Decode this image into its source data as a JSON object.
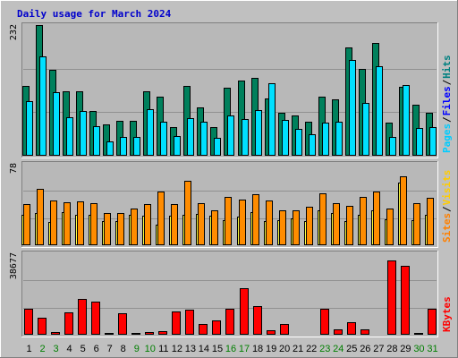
{
  "title": "Daily usage for March 2024",
  "colors": {
    "background": "#c0c0c0",
    "panel": "#b8b8b8",
    "hits": "#00805c",
    "files": "#00e0ff",
    "pages": "#0000c8",
    "visits": "#ff8c00",
    "sites": "#ffff40",
    "kbytes": "#ff0000",
    "title": "#0000cc",
    "weekday": "#000000",
    "weekend": "#007f00"
  },
  "chart_data": [
    {
      "type": "bar",
      "panel": "top",
      "ymax_label": "232",
      "ylim": [
        0,
        232
      ],
      "legend": [
        {
          "label": "Pages",
          "color": "#00ccff"
        },
        {
          "label": "/",
          "color": "#000000"
        },
        {
          "label": "Files",
          "color": "#0000ff"
        },
        {
          "label": "/",
          "color": "#000000"
        },
        {
          "label": "Hits",
          "color": "#008080"
        }
      ],
      "categories": [
        "1",
        "2",
        "3",
        "4",
        "5",
        "6",
        "7",
        "8",
        "9",
        "10",
        "11",
        "12",
        "13",
        "14",
        "15",
        "16",
        "17",
        "18",
        "19",
        "20",
        "21",
        "22",
        "23",
        "24",
        "25",
        "26",
        "27",
        "28",
        "29",
        "30",
        "31"
      ],
      "series": [
        {
          "key": "hits",
          "values": [
            124,
            232,
            153,
            114,
            114,
            79,
            56,
            62,
            62,
            114,
            105,
            51,
            124,
            86,
            51,
            121,
            133,
            139,
            101,
            77,
            71,
            60,
            105,
            100,
            193,
            154,
            200,
            59,
            123,
            91,
            77
          ]
        },
        {
          "key": "files",
          "values": [
            97,
            176,
            113,
            68,
            80,
            53,
            26,
            33,
            33,
            82,
            60,
            35,
            66,
            60,
            31,
            72,
            65,
            81,
            128,
            64,
            47,
            38,
            58,
            60,
            170,
            93,
            159,
            34,
            126,
            50,
            51
          ]
        },
        {
          "key": "pages",
          "values": [
            0,
            0,
            0,
            0,
            0,
            0,
            0,
            0,
            0,
            0,
            0,
            0,
            0,
            0,
            0,
            0,
            0,
            0,
            0,
            0,
            0,
            0,
            0,
            0,
            0,
            0,
            0,
            0,
            0,
            0,
            0
          ]
        }
      ]
    },
    {
      "type": "bar",
      "panel": "middle",
      "ymax_label": "78",
      "ylim": [
        0,
        78
      ],
      "legend": [
        {
          "label": "Sites",
          "color": "#ff8000"
        },
        {
          "label": "/",
          "color": "#000000"
        },
        {
          "label": "Visits",
          "color": "#ffcc00"
        }
      ],
      "categories": [
        "1",
        "2",
        "3",
        "4",
        "5",
        "6",
        "7",
        "8",
        "9",
        "10",
        "11",
        "12",
        "13",
        "14",
        "15",
        "16",
        "17",
        "18",
        "19",
        "20",
        "21",
        "22",
        "23",
        "24",
        "25",
        "26",
        "27",
        "28",
        "29",
        "30",
        "31"
      ],
      "series": [
        {
          "key": "sites",
          "values": [
            29,
            31,
            22,
            32,
            29,
            29,
            23,
            23,
            29,
            28,
            20,
            28,
            29,
            30,
            28,
            24,
            27,
            32,
            23,
            24,
            26,
            23,
            33,
            31,
            23,
            29,
            33,
            25,
            60,
            24,
            29
          ]
        },
        {
          "key": "visits",
          "values": [
            39,
            54,
            43,
            41,
            42,
            40,
            31,
            31,
            35,
            39,
            51,
            39,
            62,
            40,
            33,
            46,
            44,
            49,
            43,
            33,
            33,
            37,
            50,
            40,
            38,
            46,
            51,
            35,
            66,
            40,
            45
          ]
        }
      ]
    },
    {
      "type": "bar",
      "panel": "bottom",
      "ymax_label": "38677",
      "ylim": [
        0,
        38677
      ],
      "legend": [
        {
          "label": "KBytes",
          "color": "#ff0000"
        }
      ],
      "categories": [
        "1",
        "2",
        "3",
        "4",
        "5",
        "6",
        "7",
        "8",
        "9",
        "10",
        "11",
        "12",
        "13",
        "14",
        "15",
        "16",
        "17",
        "18",
        "19",
        "20",
        "21",
        "22",
        "23",
        "24",
        "25",
        "26",
        "27",
        "28",
        "29",
        "30",
        "31"
      ],
      "series": [
        {
          "key": "kbytes",
          "values": [
            12300,
            8200,
            1200,
            10800,
            17000,
            15600,
            900,
            10300,
            1000,
            1200,
            1600,
            11100,
            11800,
            5200,
            6600,
            12300,
            22200,
            13700,
            2100,
            4900,
            500,
            500,
            12300,
            2600,
            6000,
            2600,
            600,
            35300,
            32600,
            800,
            12300
          ]
        }
      ]
    }
  ],
  "days": [
    {
      "label": "1",
      "weekend": false
    },
    {
      "label": "2",
      "weekend": true
    },
    {
      "label": "3",
      "weekend": true
    },
    {
      "label": "4",
      "weekend": false
    },
    {
      "label": "5",
      "weekend": false
    },
    {
      "label": "6",
      "weekend": false
    },
    {
      "label": "7",
      "weekend": false
    },
    {
      "label": "8",
      "weekend": false
    },
    {
      "label": "9",
      "weekend": true
    },
    {
      "label": "10",
      "weekend": true
    },
    {
      "label": "11",
      "weekend": false
    },
    {
      "label": "12",
      "weekend": false
    },
    {
      "label": "13",
      "weekend": false
    },
    {
      "label": "14",
      "weekend": false
    },
    {
      "label": "15",
      "weekend": false
    },
    {
      "label": "16",
      "weekend": true
    },
    {
      "label": "17",
      "weekend": true
    },
    {
      "label": "18",
      "weekend": false
    },
    {
      "label": "19",
      "weekend": false
    },
    {
      "label": "20",
      "weekend": false
    },
    {
      "label": "21",
      "weekend": false
    },
    {
      "label": "22",
      "weekend": false
    },
    {
      "label": "23",
      "weekend": true
    },
    {
      "label": "24",
      "weekend": true
    },
    {
      "label": "25",
      "weekend": false
    },
    {
      "label": "26",
      "weekend": false
    },
    {
      "label": "27",
      "weekend": false
    },
    {
      "label": "28",
      "weekend": false
    },
    {
      "label": "29",
      "weekend": false
    },
    {
      "label": "30",
      "weekend": true
    },
    {
      "label": "31",
      "weekend": true
    }
  ]
}
